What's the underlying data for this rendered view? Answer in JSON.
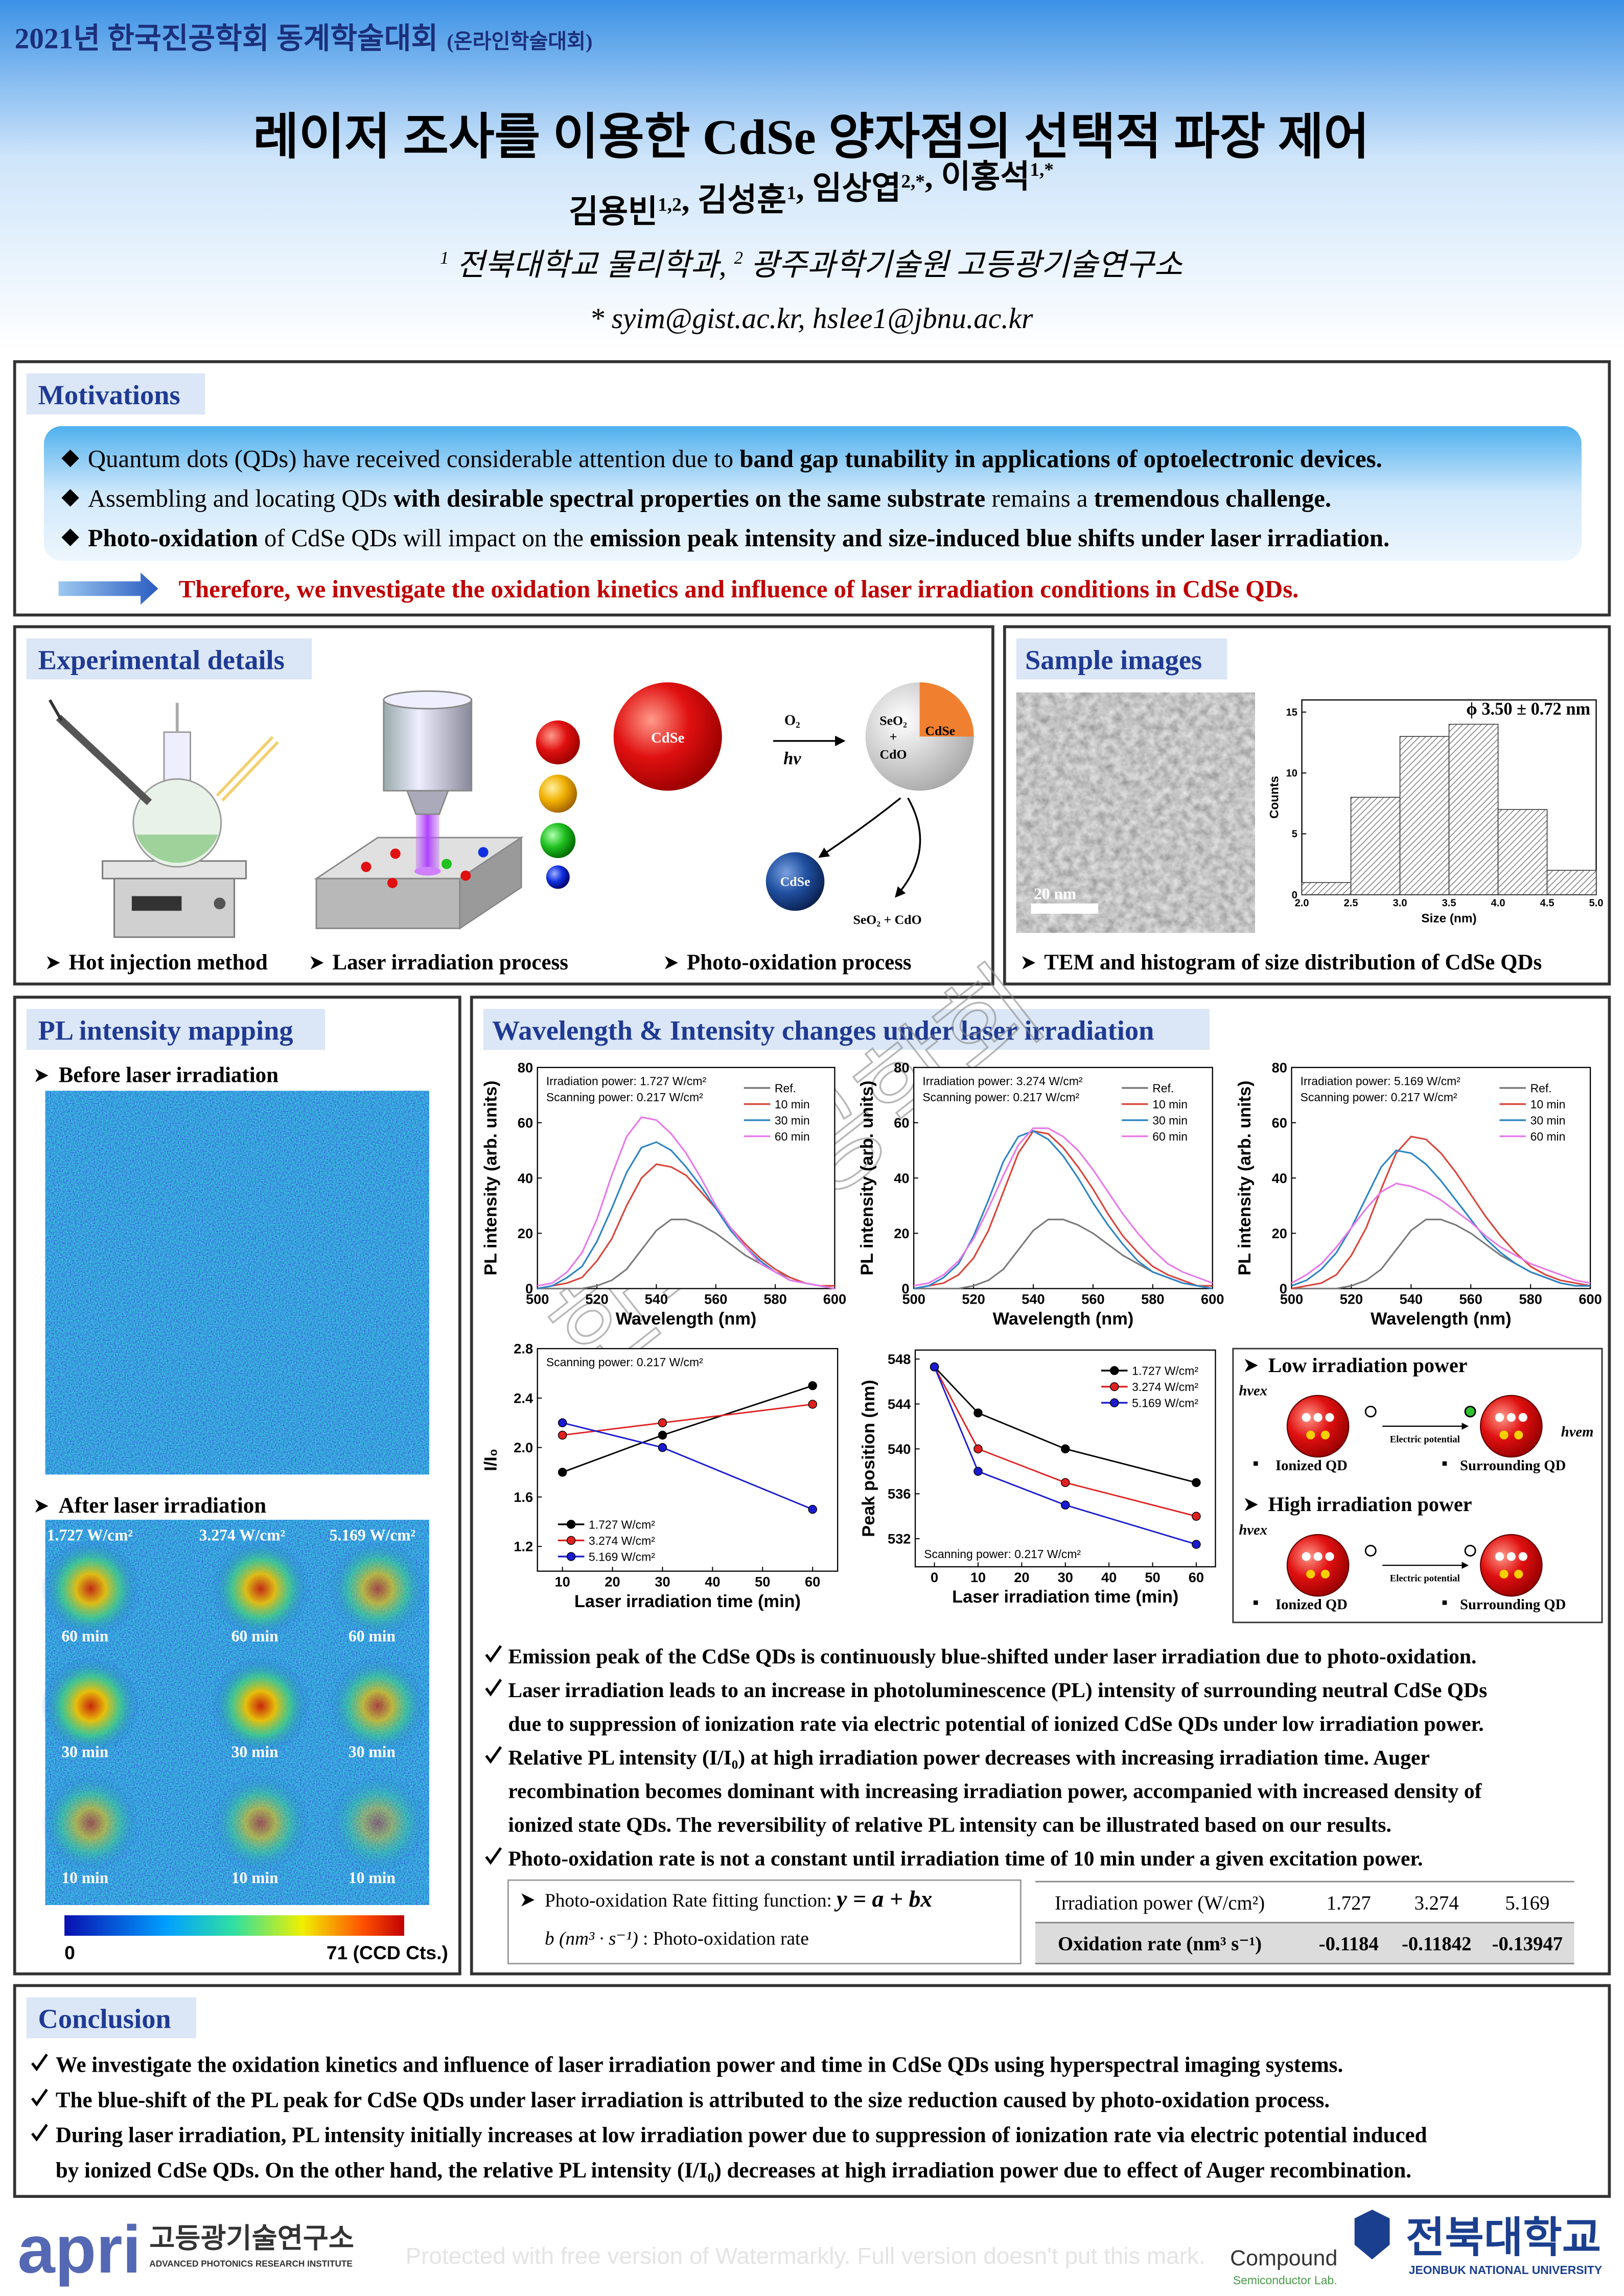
{
  "header": {
    "conference": "2021년 한국진공학회 동계학술대회",
    "conference_note": "(온라인학술대회)",
    "title": "레이저 조사를 이용한 CdSe 양자점의 선택적 파장 제어",
    "authors": [
      {
        "text": "김용빈",
        "sup": "1,2"
      },
      {
        "text": ", 김성훈",
        "sup": "1"
      },
      {
        "text": ", 임상엽",
        "sup": "2,*"
      },
      {
        "text": ", 이홍석",
        "sup": "1,*"
      }
    ],
    "affiliations": [
      {
        "sup": "1",
        "text": " 전북대학교 물리학과, "
      },
      {
        "sup": "2",
        "text": " 광주과학기술원 고등광기술연구소"
      }
    ],
    "emails": "* syim@gist.ac.kr, hslee1@jbnu.ac.kr"
  },
  "motivations": {
    "heading": "Motivations",
    "bullets": [
      [
        {
          "text": "Quantum dots (QDs) have received considerable attention due to ",
          "bold": false
        },
        {
          "text": "band gap tunability in applications of optoelectronic devices.",
          "bold": true
        }
      ],
      [
        {
          "text": "Assembling and locating QDs ",
          "bold": false
        },
        {
          "text": "with desirable spectral properties on the same substrate",
          "bold": true
        },
        {
          "text": " remains a ",
          "bold": false
        },
        {
          "text": "tremendous challenge.",
          "bold": true
        }
      ],
      [
        {
          "text": "Photo-oxidation",
          "bold": true
        },
        {
          "text": " of CdSe QDs will impact on the ",
          "bold": false
        },
        {
          "text": "emission peak intensity and size-induced blue shifts under laser irradiation.",
          "bold": true
        }
      ]
    ],
    "therefore": "Therefore, we investigate the oxidation kinetics and influence of laser irradiation conditions in CdSe QDs."
  },
  "experimental": {
    "heading": "Experimental details",
    "captions": [
      "Hot injection method",
      "Laser irradiation process",
      "Photo-oxidation process"
    ],
    "labels": {
      "cdse_core": "CdSe",
      "o2": "O₂",
      "hv": "hν",
      "seo2": "SeO₂",
      "plus": "+",
      "cdo": "CdO",
      "cdse_shell": "CdSe",
      "cdse_small": "CdSe",
      "products": "SeO₂ + CdO"
    }
  },
  "sample": {
    "heading": "Sample images",
    "scale_bar": "20 nm",
    "caption": "TEM and histogram of size distribution of CdSe QDs"
  },
  "mapping": {
    "heading": "PL intensity mapping",
    "before": "Before laser irradiation",
    "after": "After laser irradiation",
    "powers": [
      "1.727 W/cm²",
      "3.274 W/cm²",
      "5.169 W/cm²"
    ],
    "times": [
      "60 min",
      "30 min",
      "10 min"
    ],
    "colorbar_min": "0",
    "colorbar_max": "71 (CCD Cts.)"
  },
  "results": {
    "heading": "Wavelength & Intensity changes under laser irradiation",
    "mechanism": {
      "low": "Low irradiation power",
      "high": "High irradiation power",
      "hv_ex": "hνex",
      "hv_em": "hνem",
      "potential": "Electric potential",
      "ionized": "Ionized QD",
      "surrounding": "Surrounding QD"
    },
    "bullets": [
      [
        "Emission peak of the CdSe QDs is continuously blue-shifted under laser irradiation due to photo-oxidation."
      ],
      [
        "Laser irradiation leads to an increase in photoluminescence (PL) intensity of surrounding neutral CdSe QDs",
        "due to suppression of ionization rate via electric potential of ionized CdSe QDs under low irradiation power."
      ],
      [
        "Relative PL intensity (I/I₀) at high irradiation power decreases with increasing irradiation time. Auger",
        "recombination becomes dominant with increasing irradiation power, accompanied with increased density of",
        "ionized state QDs. The reversibility of relative PL intensity can be illustrated based on our results."
      ],
      [
        "Photo-oxidation rate is not a constant until irradiation time of 10 min under a given excitation power."
      ]
    ],
    "fitting": [
      [
        "Photo-oxidation Rate fitting function: ",
        "y = a + bx"
      ],
      [
        "b (nm³ · s⁻¹)",
        " : Photo-oxidation rate"
      ]
    ],
    "table": {
      "rows": [
        [
          "Irradiation power (W/cm²)",
          "1.727",
          "3.274",
          "5.169"
        ],
        [
          "Oxidation rate (nm³ s⁻¹)",
          "-0.1184",
          "-0.11842",
          "-0.13947"
        ]
      ]
    }
  },
  "conclusion": {
    "heading": "Conclusion",
    "bullets": [
      [
        "We investigate the oxidation kinetics and influence of laser irradiation power and time in CdSe QDs using hyperspectral imaging systems."
      ],
      [
        "The blue-shift of the PL peak for CdSe QDs under laser irradiation is attributed to the size reduction caused by photo-oxidation process."
      ],
      [
        "During laser irradiation, PL intensity initially increases at low irradiation power due to suppression of ionization rate via electric potential induced",
        "by ionized CdSe QDs. On the other hand, the relative PL intensity (I/I₀) decreases at high irradiation power due to effect of Auger recombination."
      ]
    ]
  },
  "footer": {
    "apri": "apri",
    "apri_kr": "고등광기술연구소",
    "apri_en": "ADVANCED PHOTONICS RESEARCH INSTITUTE",
    "compound": "Compound",
    "compound_sub": "Semiconductor Lab.",
    "jbnu": "전북대학교",
    "jbnu_en": "JEONBUK NATIONAL UNIVERSITY"
  },
  "watermarks": {
    "society": "한국진공학회",
    "footer": "Protected with free version of Watermarkly. Full version doesn't put this mark."
  },
  "chart_data": [
    {
      "type": "histogram",
      "title": "ϕ 3.50 ± 0.72 nm",
      "xlabel": "Size (nm)",
      "ylabel": "Counts",
      "color": "#444",
      "bins": [
        2.0,
        2.5,
        3.0,
        3.5,
        4.0,
        4.5,
        5.0
      ],
      "values": [
        1,
        8,
        13,
        14,
        7,
        2
      ],
      "xlim": [
        2.0,
        5.0
      ],
      "ylim": [
        0,
        16
      ],
      "xticks": [
        {
          "value": 2.0,
          "label": "2.0"
        },
        2.5,
        {
          "value": 3.0,
          "label": "3.0"
        },
        3.5,
        {
          "value": 4.0,
          "label": "4.0"
        },
        4.5,
        {
          "value": 5.0,
          "label": "5.0"
        }
      ],
      "yticks": [
        0,
        5,
        10,
        15
      ]
    },
    {
      "type": "line",
      "xlabel": "Wavelength (nm)",
      "ylabel": "PL intensity (arb. units)",
      "legend": "upper right",
      "annotation_corner": "upper left",
      "markers": false,
      "annotations": [
        "Irradiation power: 1.727 W/cm²",
        "Scanning power: 0.217 W/cm²"
      ],
      "x": [
        500,
        505,
        510,
        515,
        520,
        525,
        530,
        535,
        540,
        545,
        550,
        555,
        560,
        565,
        570,
        575,
        580,
        585,
        590,
        595,
        600
      ],
      "series": [
        {
          "name": "Ref.",
          "color": "#7a7a7a",
          "values": [
            0,
            0,
            0,
            0,
            1,
            3,
            7,
            14,
            21,
            25,
            25,
            23,
            20,
            16,
            12,
            9,
            6,
            4,
            2,
            1,
            1
          ]
        },
        {
          "name": "10 min",
          "color": "#d9453b",
          "values": [
            0,
            1,
            2,
            4,
            10,
            18,
            30,
            40,
            45,
            44,
            41,
            35,
            29,
            22,
            16,
            11,
            7,
            4,
            2,
            1,
            1
          ]
        },
        {
          "name": "30 min",
          "color": "#2c84c4",
          "values": [
            0,
            1,
            4,
            8,
            17,
            29,
            42,
            51,
            53,
            50,
            44,
            37,
            29,
            21,
            15,
            10,
            6,
            3,
            2,
            1,
            0
          ]
        },
        {
          "name": "60 min",
          "color": "#e878e8",
          "values": [
            1,
            2,
            6,
            13,
            25,
            41,
            55,
            62,
            61,
            56,
            49,
            40,
            30,
            22,
            15,
            9,
            6,
            3,
            2,
            1,
            0
          ]
        }
      ],
      "xlim": [
        500,
        600
      ],
      "ylim": [
        0,
        80
      ],
      "xticks": [
        500,
        520,
        540,
        560,
        580,
        600
      ],
      "yticks": [
        0,
        20,
        40,
        60,
        80
      ]
    },
    {
      "type": "line",
      "xlabel": "Wavelength (nm)",
      "ylabel": "PL intensity (arb. units)",
      "legend": "upper right",
      "annotation_corner": "upper left",
      "markers": false,
      "annotations": [
        "Irradiation power: 3.274 W/cm²",
        "Scanning power: 0.217 W/cm²"
      ],
      "x": [
        500,
        505,
        510,
        515,
        520,
        525,
        530,
        535,
        540,
        545,
        550,
        555,
        560,
        565,
        570,
        575,
        580,
        585,
        590,
        595,
        600
      ],
      "series": [
        {
          "name": "Ref.",
          "color": "#7a7a7a",
          "values": [
            0,
            0,
            0,
            0,
            1,
            3,
            7,
            14,
            21,
            25,
            25,
            23,
            20,
            16,
            12,
            9,
            6,
            4,
            2,
            1,
            1
          ]
        },
        {
          "name": "10 min",
          "color": "#d9453b",
          "values": [
            0,
            1,
            2,
            5,
            11,
            21,
            35,
            49,
            57,
            56,
            51,
            44,
            36,
            27,
            19,
            13,
            8,
            5,
            3,
            1,
            1
          ]
        },
        {
          "name": "30 min",
          "color": "#2c84c4",
          "values": [
            0,
            1,
            4,
            9,
            19,
            32,
            46,
            55,
            57,
            54,
            48,
            40,
            31,
            23,
            16,
            10,
            6,
            4,
            2,
            1,
            0
          ]
        },
        {
          "name": "60 min",
          "color": "#e878e8",
          "values": [
            1,
            2,
            5,
            10,
            18,
            29,
            41,
            52,
            58,
            58,
            55,
            50,
            43,
            35,
            27,
            20,
            14,
            9,
            6,
            4,
            2
          ]
        }
      ],
      "xlim": [
        500,
        600
      ],
      "ylim": [
        0,
        80
      ],
      "xticks": [
        500,
        520,
        540,
        560,
        580,
        600
      ],
      "yticks": [
        0,
        20,
        40,
        60,
        80
      ]
    },
    {
      "type": "line",
      "xlabel": "Wavelength (nm)",
      "ylabel": "PL intensity (arb. units)",
      "legend": "upper right",
      "annotation_corner": "upper left",
      "markers": false,
      "annotations": [
        "Irradiation power: 5.169 W/cm²",
        "Scanning power: 0.217 W/cm²"
      ],
      "x": [
        500,
        505,
        510,
        515,
        520,
        525,
        530,
        535,
        540,
        545,
        550,
        555,
        560,
        565,
        570,
        575,
        580,
        585,
        590,
        595,
        600
      ],
      "series": [
        {
          "name": "Ref.",
          "color": "#7a7a7a",
          "values": [
            0,
            0,
            0,
            0,
            1,
            3,
            7,
            14,
            21,
            25,
            25,
            23,
            20,
            16,
            12,
            9,
            6,
            4,
            2,
            1,
            1
          ]
        },
        {
          "name": "10 min",
          "color": "#d9453b",
          "values": [
            0,
            1,
            2,
            5,
            12,
            22,
            36,
            49,
            55,
            54,
            49,
            42,
            34,
            26,
            19,
            13,
            8,
            5,
            3,
            2,
            1
          ]
        },
        {
          "name": "30 min",
          "color": "#2c84c4",
          "values": [
            1,
            3,
            7,
            13,
            22,
            33,
            44,
            50,
            49,
            45,
            39,
            32,
            25,
            18,
            13,
            9,
            6,
            4,
            2,
            1,
            1
          ]
        },
        {
          "name": "60 min",
          "color": "#e878e8",
          "values": [
            2,
            5,
            9,
            15,
            22,
            29,
            35,
            38,
            37,
            35,
            32,
            28,
            24,
            19,
            15,
            12,
            9,
            7,
            5,
            3,
            2
          ]
        }
      ],
      "xlim": [
        500,
        600
      ],
      "ylim": [
        0,
        80
      ],
      "xticks": [
        500,
        520,
        540,
        560,
        580,
        600
      ],
      "yticks": [
        0,
        20,
        40,
        60,
        80
      ]
    },
    {
      "type": "line",
      "xlabel": "Laser irradiation time (min)",
      "ylabel": "I/I₀",
      "legend": "lower left",
      "annotation_corner": "upper left",
      "markers": true,
      "annotations": [
        "Scanning power: 0.217 W/cm²"
      ],
      "x": [
        10,
        30,
        60
      ],
      "series": [
        {
          "name": "1.727 W/cm²",
          "color": "#000000",
          "values": [
            1.8,
            2.1,
            2.5
          ]
        },
        {
          "name": "3.274 W/cm²",
          "color": "#e02020",
          "values": [
            2.1,
            2.2,
            2.35
          ]
        },
        {
          "name": "5.169 W/cm²",
          "color": "#1a1ad0",
          "values": [
            2.2,
            2.0,
            1.5
          ]
        }
      ],
      "xlim": [
        5,
        65
      ],
      "ylim": [
        1.0,
        2.8
      ],
      "xticks": [
        10,
        20,
        30,
        40,
        50,
        60
      ],
      "yticks": [
        1.2,
        1.6,
        {
          "value": 2.0,
          "label": "2.0"
        },
        2.4,
        2.8
      ]
    },
    {
      "type": "line",
      "xlabel": "Laser irradiation time (min)",
      "ylabel": "Peak position (nm)",
      "legend": "upper right",
      "annotation_corner": "lower left",
      "markers": true,
      "annotations": [
        "Scanning power: 0.217 W/cm²"
      ],
      "x": [
        0,
        10,
        30,
        60
      ],
      "series": [
        {
          "name": "1.727 W/cm²",
          "color": "#000000",
          "values": [
            547.3,
            543.2,
            540,
            537
          ]
        },
        {
          "name": "3.274 W/cm²",
          "color": "#e02020",
          "values": [
            547.3,
            540,
            537,
            534
          ]
        },
        {
          "name": "5.169 W/cm²",
          "color": "#1a1ad0",
          "values": [
            547.3,
            538,
            535,
            531.5
          ]
        }
      ],
      "xlim": [
        -4.4,
        64.4
      ],
      "ylim": [
        529.5,
        548.8
      ],
      "xticks": [
        0,
        10,
        20,
        30,
        40,
        50,
        60
      ],
      "yticks": [
        532,
        536,
        540,
        544,
        548
      ]
    }
  ]
}
